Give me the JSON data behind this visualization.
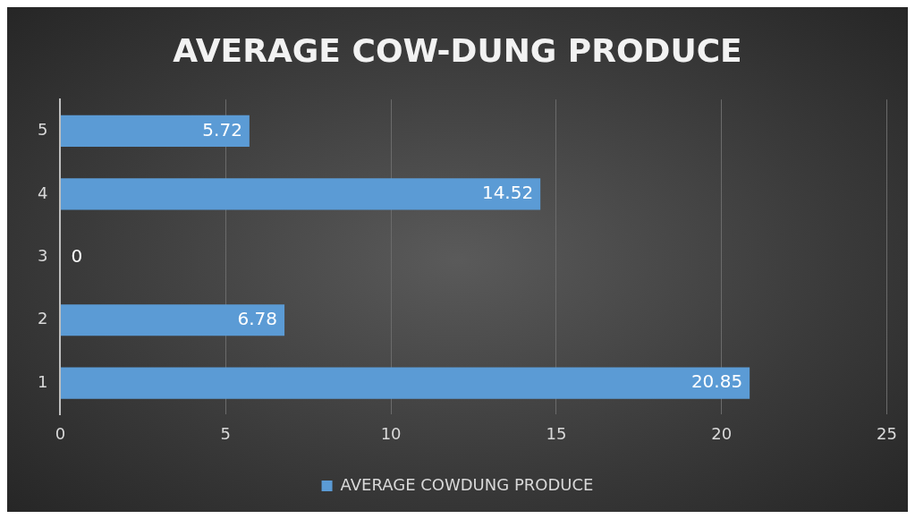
{
  "chart_data": {
    "type": "bar",
    "orientation": "horizontal",
    "title": "AVERAGE COW-DUNG PRODUCE",
    "categories": [
      "5",
      "4",
      "3",
      "2",
      "1"
    ],
    "series": [
      {
        "name": "AVERAGE COWDUNG PRODUCE",
        "color": "#5b9bd5",
        "values": [
          5.72,
          14.52,
          0,
          6.78,
          20.85
        ]
      }
    ],
    "xlim": [
      0,
      25
    ],
    "xticks": [
      0,
      5,
      10,
      15,
      20,
      25
    ],
    "grid": "x",
    "legend": "bottom",
    "data_labels": true
  }
}
